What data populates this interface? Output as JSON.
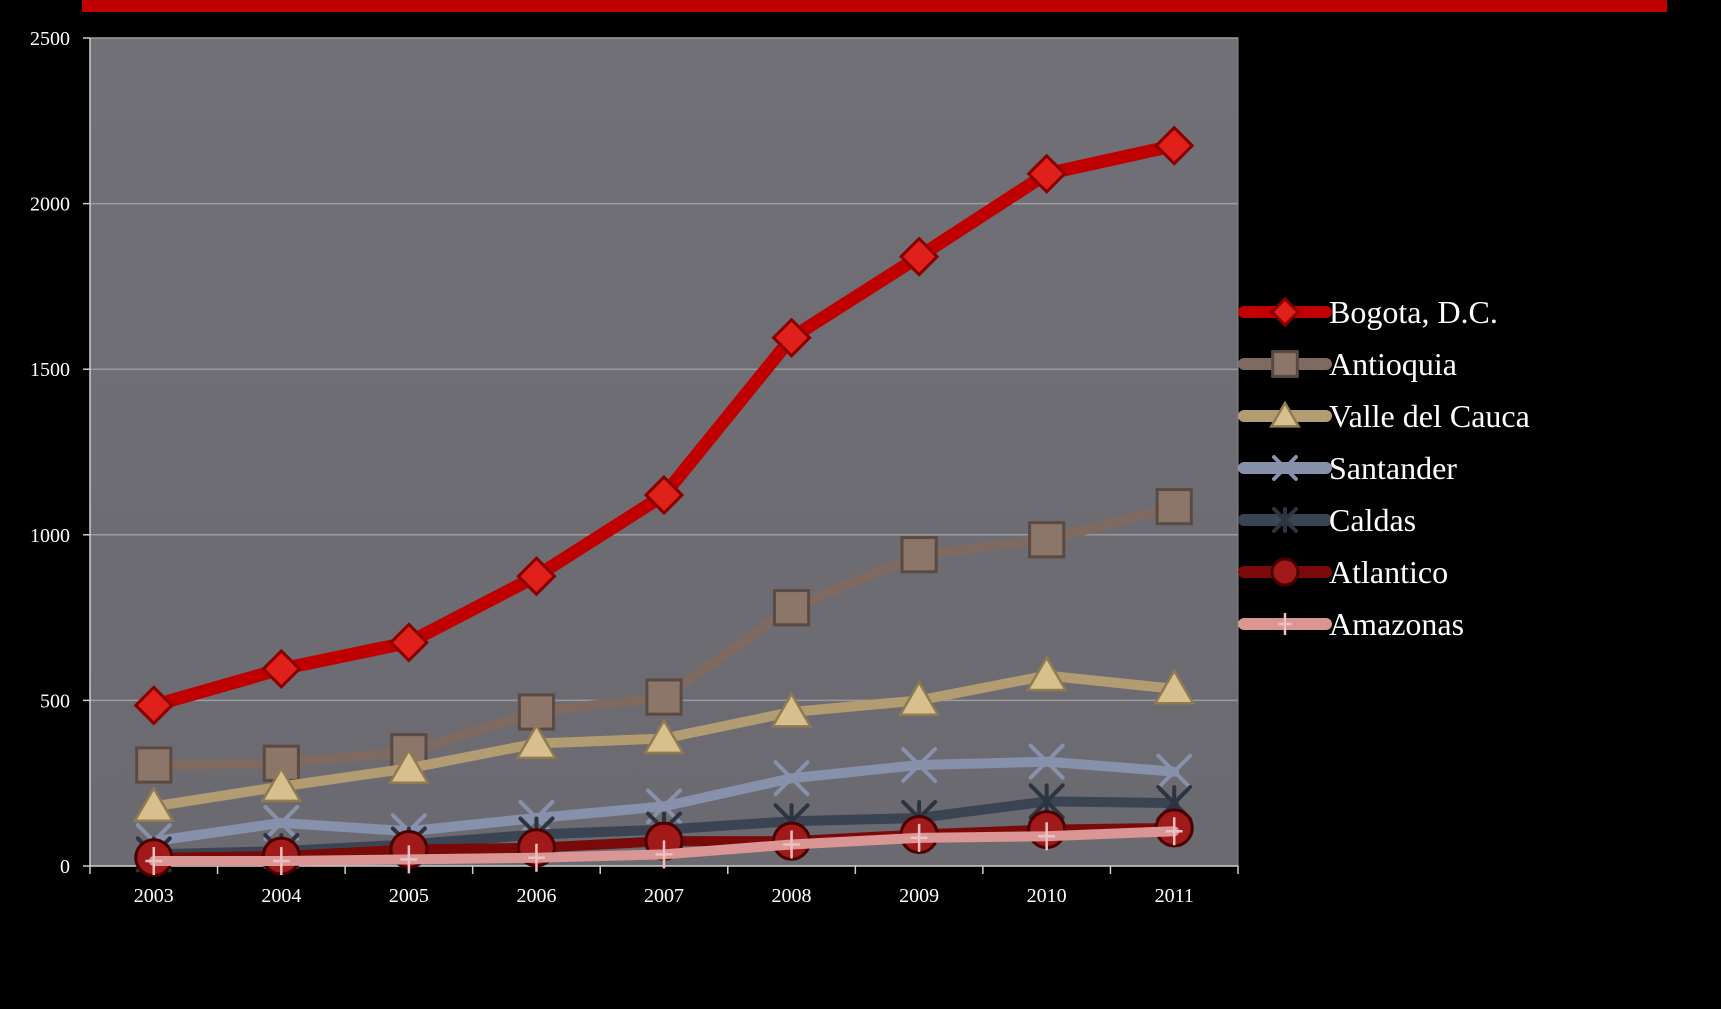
{
  "chart_data": {
    "type": "line",
    "title": "",
    "xlabel": "",
    "ylabel": "",
    "categories": [
      "2003",
      "2004",
      "2005",
      "2006",
      "2007",
      "2008",
      "2009",
      "2010",
      "2011"
    ],
    "ylim": [
      0,
      2500
    ],
    "yticks": [
      0,
      500,
      1000,
      1500,
      2000,
      2500
    ],
    "grid": true,
    "legend_position": "right",
    "series": [
      {
        "name": "Bogota, D.C.",
        "color": "#c00000",
        "marker": "diamond",
        "values": [
          485,
          595,
          675,
          875,
          1120,
          1595,
          1840,
          2090,
          2175
        ]
      },
      {
        "name": "Antioquia",
        "color": "#7f6a61",
        "marker": "square",
        "values": [
          305,
          310,
          345,
          465,
          510,
          780,
          940,
          985,
          1085
        ]
      },
      {
        "name": "Valle del Cauca",
        "color": "#b39b72",
        "marker": "triangle",
        "values": [
          180,
          240,
          295,
          370,
          385,
          465,
          500,
          575,
          535
        ]
      },
      {
        "name": "Santander",
        "color": "#8791ab",
        "marker": "x",
        "values": [
          75,
          130,
          105,
          145,
          180,
          265,
          305,
          315,
          285
        ]
      },
      {
        "name": "Caldas",
        "color": "#3a4452",
        "marker": "star",
        "values": [
          35,
          45,
          65,
          95,
          110,
          135,
          145,
          195,
          190
        ]
      },
      {
        "name": "Atlantico",
        "color": "#7a0a0a",
        "marker": "circle",
        "values": [
          25,
          30,
          50,
          55,
          75,
          75,
          95,
          110,
          115
        ]
      },
      {
        "name": "Amazonas",
        "color": "#d99694",
        "marker": "plus",
        "values": [
          15,
          15,
          20,
          25,
          35,
          65,
          85,
          90,
          105
        ]
      }
    ]
  }
}
